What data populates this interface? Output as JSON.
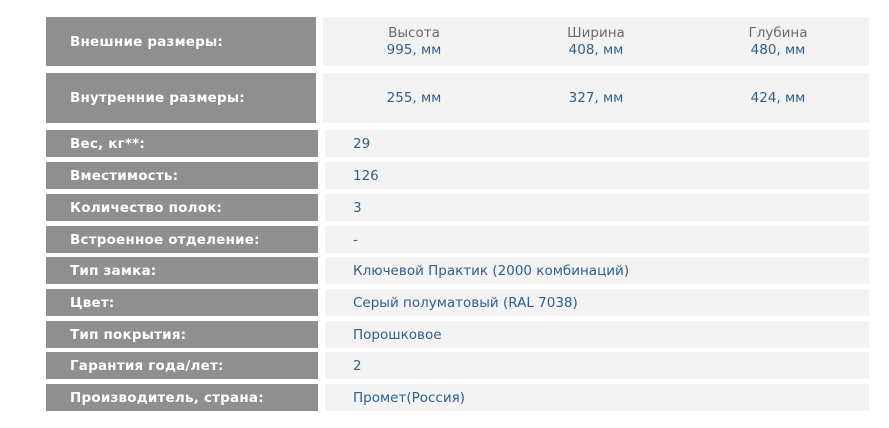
{
  "dimensions": {
    "outer": {
      "label": "Внешние размеры:",
      "cols": [
        {
          "header": "Высота",
          "value": "995, мм"
        },
        {
          "header": "Ширина",
          "value": "408, мм"
        },
        {
          "header": "Глубина",
          "value": "480, мм"
        }
      ]
    },
    "inner": {
      "label": "Внутренние размеры:",
      "values": [
        "255, мм",
        "327, мм",
        "424, мм"
      ]
    }
  },
  "specs": [
    {
      "label": "Вес, кг**:",
      "value": "29"
    },
    {
      "label": "Вместимость:",
      "value": "126"
    },
    {
      "label": "Количество полок:",
      "value": "3"
    },
    {
      "label": "Встроенное отделение:",
      "value": "-"
    },
    {
      "label": "Тип замка:",
      "value": "Ключевой Практик (2000 комбинаций)"
    },
    {
      "label": "Цвет:",
      "value": "Серый полуматовый (RAL 7038)"
    },
    {
      "label": "Тип покрытия:",
      "value": "Порошковое"
    },
    {
      "label": "Гарантия года/лет:",
      "value": "2"
    },
    {
      "label": "Производитель, страна:",
      "value": "Промет(Россия)"
    }
  ],
  "colors": {
    "label_bg": "#8f8f8f",
    "value_bg": "#f3f3f3",
    "value_text": "#2f5f8f"
  }
}
